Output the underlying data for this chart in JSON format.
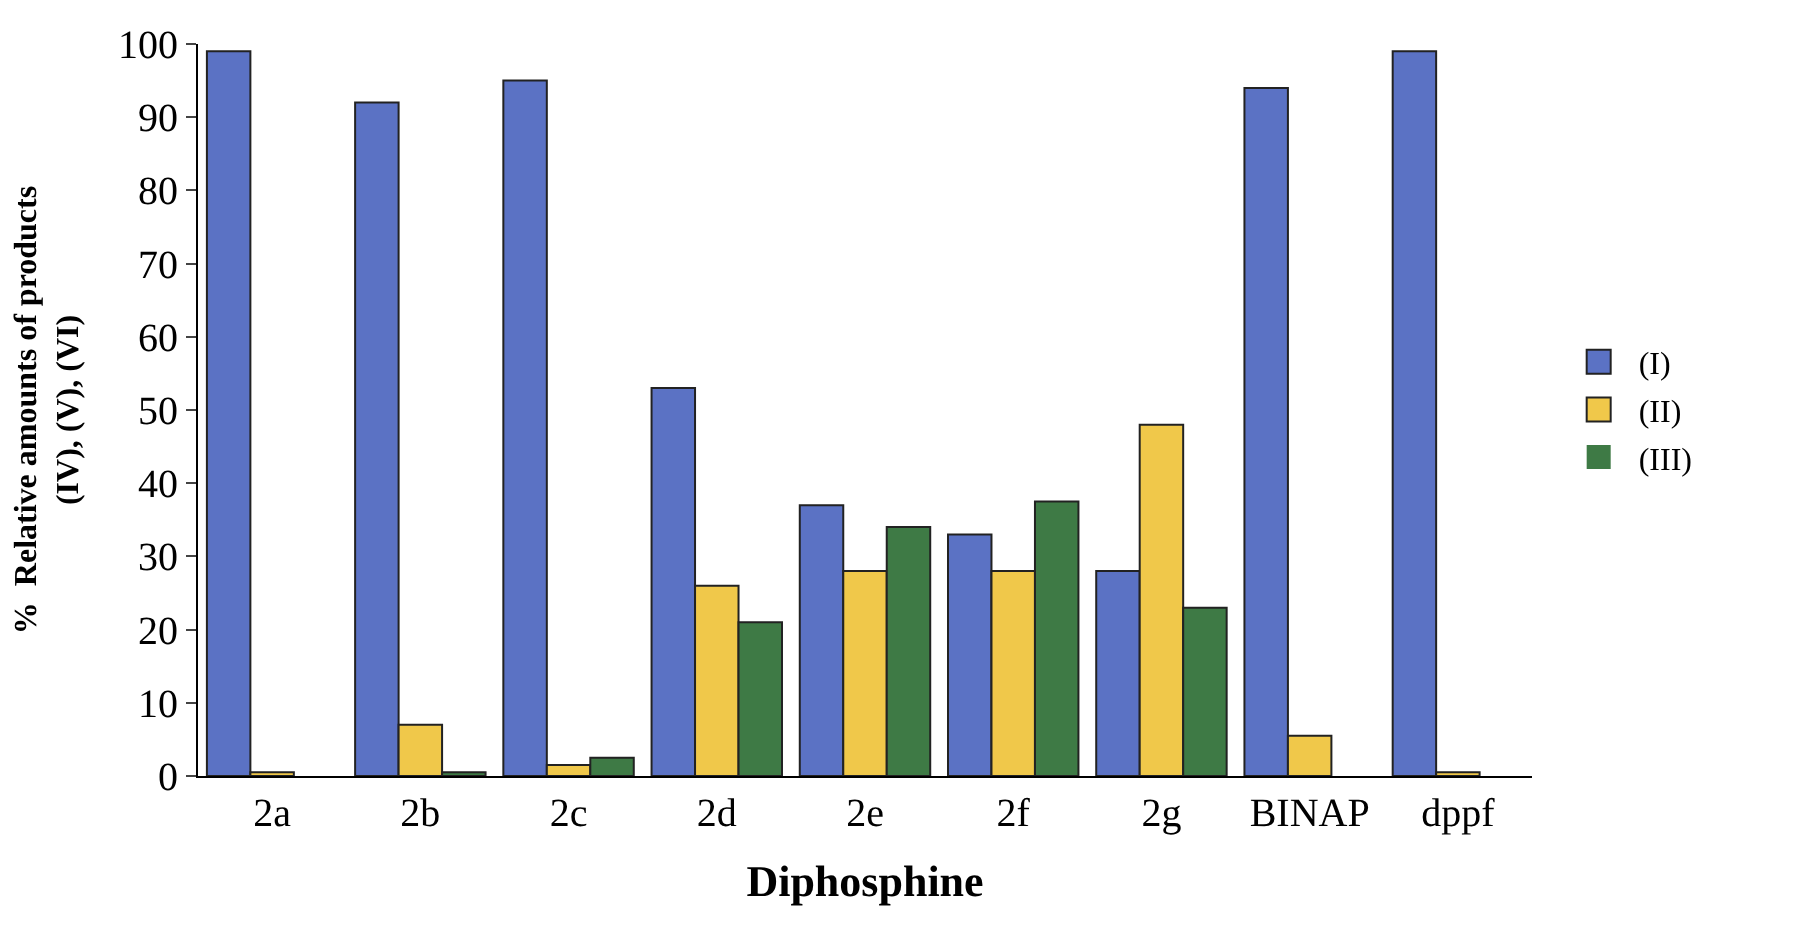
{
  "chart_data": {
    "type": "bar",
    "xlabel": "Diphosphine",
    "ylabel": "%  Relative amounts of products\n(IV), (V), (VI)",
    "categories": [
      "2a",
      "2b",
      "2c",
      "2d",
      "2e",
      "2f",
      "2g",
      "BINAP",
      "dppf"
    ],
    "series": [
      {
        "name": "(I)",
        "color": "#5b72c4",
        "values": [
          99,
          92,
          95,
          53,
          37,
          33,
          28,
          94,
          99
        ]
      },
      {
        "name": "(II)",
        "color": "#f0c84a",
        "values": [
          0.5,
          7,
          1.5,
          26,
          28,
          28,
          48,
          5.5,
          0.5
        ]
      },
      {
        "name": "(III)",
        "color": "#3e7a45",
        "values": [
          0,
          0.5,
          2.5,
          21,
          34,
          37.5,
          23,
          0,
          0
        ]
      }
    ],
    "ylim": [
      0,
      100
    ],
    "yticks": [
      0,
      10,
      20,
      30,
      40,
      50,
      60,
      70,
      80,
      90,
      100
    ],
    "legend": "right"
  }
}
